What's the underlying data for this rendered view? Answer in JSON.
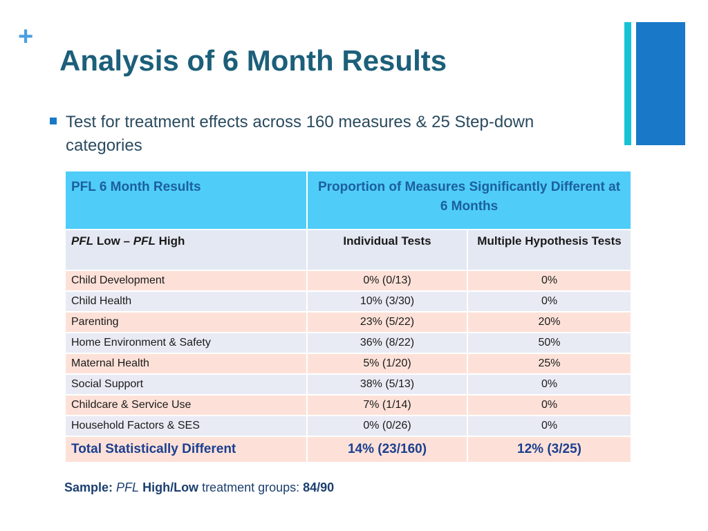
{
  "slide": {
    "plus": "+",
    "title": "Analysis of 6 Month Results",
    "bullet": "Test for treatment effects across 160 measures & 25 Step-down categories"
  },
  "table": {
    "header1": {
      "left": "PFL 6 Month Results",
      "right": "Proportion of Measures Significantly Different at 6 Months"
    },
    "header2": {
      "left_italic1": "PFL",
      "left_mid": " Low – ",
      "left_italic2": "PFL",
      "left_end": " High",
      "col2": "Individual Tests",
      "col3": "Multiple Hypothesis Tests"
    },
    "rows": [
      {
        "label": "Child Development",
        "individual": "0% (0/13)",
        "multiple": "0%"
      },
      {
        "label": "Child Health",
        "individual": "10% (3/30)",
        "multiple": "0%"
      },
      {
        "label": "Parenting",
        "individual": "23% (5/22)",
        "multiple": "20%"
      },
      {
        "label": "Home Environment & Safety",
        "individual": "36% (8/22)",
        "multiple": "50%"
      },
      {
        "label": "Maternal Health",
        "individual": "5% (1/20)",
        "multiple": "25%"
      },
      {
        "label": "Social Support",
        "individual": "38% (5/13)",
        "multiple": "0%"
      },
      {
        "label": "Childcare & Service Use",
        "individual": "7% (1/14)",
        "multiple": "0%"
      },
      {
        "label": "Household Factors & SES",
        "individual": "0% (0/26)",
        "multiple": "0%"
      }
    ],
    "total": {
      "label": "Total Statistically Different",
      "individual": "14% (23/160)",
      "multiple": "12% (3/25)"
    }
  },
  "sample": {
    "label": "Sample:",
    "pfl": "PFL",
    "groups": "High/Low",
    "text": " treatment groups: ",
    "value": "84/90"
  },
  "colors": {
    "title": "#1c5f7a",
    "accent_thin": "#17c2d6",
    "accent_thick": "#1a78c8",
    "header_bg": "#4fcdf8",
    "row_pink": "#fde1d8",
    "row_blue": "#e9ebf4"
  }
}
